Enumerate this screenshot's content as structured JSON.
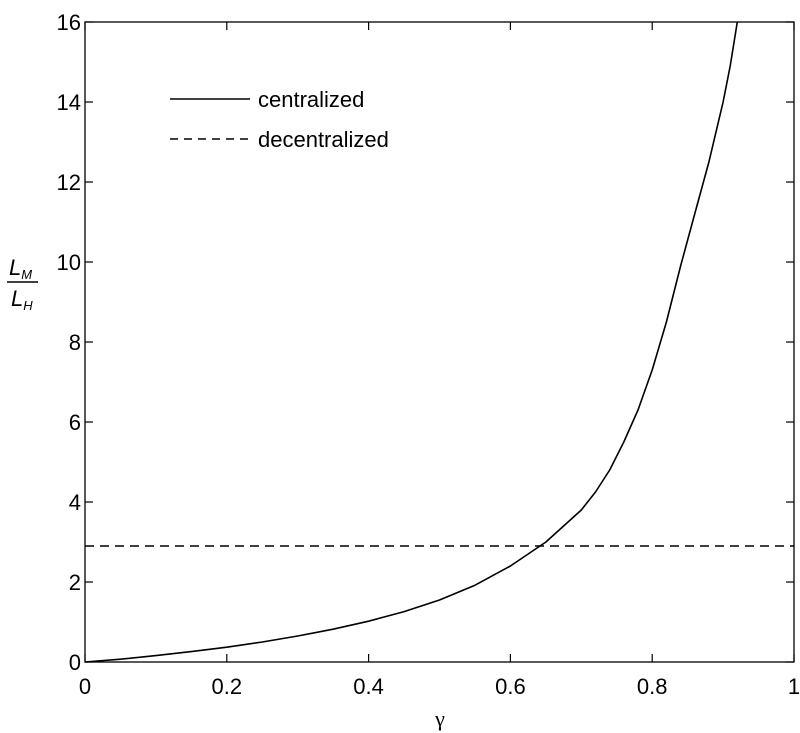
{
  "chart_data": {
    "type": "line",
    "xlabel": "γ",
    "ylabel": {
      "numerator": {
        "main": "L",
        "sub": "M"
      },
      "denominator": {
        "main": "L",
        "sub": "H"
      }
    },
    "xlim": [
      0,
      1
    ],
    "ylim": [
      0,
      16
    ],
    "x_ticks": [
      "0",
      "0.2",
      "0.4",
      "0.6",
      "0.8",
      "1"
    ],
    "y_ticks": [
      "0",
      "2",
      "4",
      "6",
      "8",
      "10",
      "12",
      "14",
      "16"
    ],
    "grid": false,
    "legend_position": "top-left",
    "series": [
      {
        "name": "centralized",
        "style": "solid",
        "color": "#000000",
        "x": [
          0,
          0.05,
          0.1,
          0.15,
          0.2,
          0.25,
          0.3,
          0.35,
          0.4,
          0.45,
          0.5,
          0.55,
          0.6,
          0.65,
          0.7,
          0.72,
          0.74,
          0.76,
          0.78,
          0.8,
          0.82,
          0.84,
          0.86,
          0.88,
          0.9,
          0.91,
          0.92
        ],
        "y": [
          0,
          0.07,
          0.16,
          0.26,
          0.37,
          0.5,
          0.65,
          0.82,
          1.02,
          1.26,
          1.55,
          1.92,
          2.4,
          3.0,
          3.8,
          4.25,
          4.8,
          5.5,
          6.3,
          7.3,
          8.5,
          9.9,
          11.2,
          12.5,
          14.0,
          14.9,
          16.0
        ]
      },
      {
        "name": "decentralized",
        "style": "dashed",
        "color": "#000000",
        "x": [
          0,
          1
        ],
        "y": [
          2.9,
          2.9
        ]
      }
    ]
  }
}
